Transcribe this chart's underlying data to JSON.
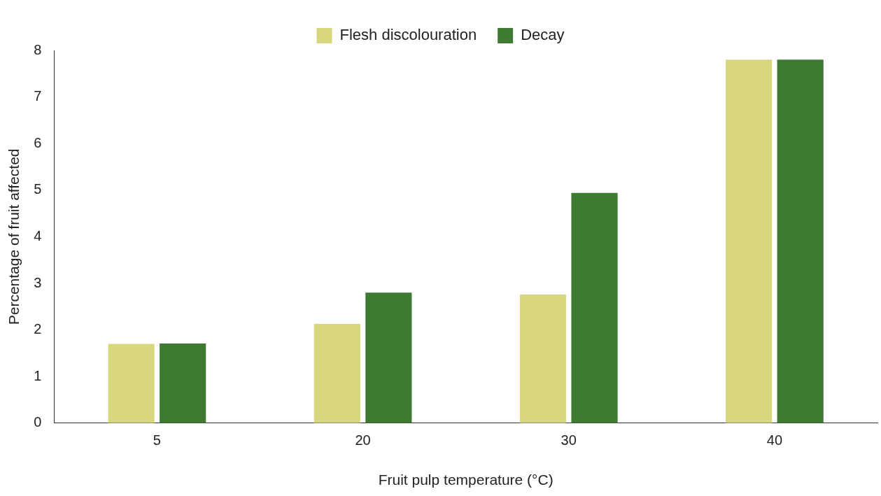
{
  "chart_data": {
    "type": "bar",
    "xlabel": "Fruit pulp temperature (°C)",
    "ylabel": "Percentage of fruit affected",
    "categories": [
      "5",
      "20",
      "30",
      "40"
    ],
    "series": [
      {
        "name": "Flesh discolouration",
        "color": "#d8d780",
        "values": [
          1.7,
          2.13,
          2.76,
          7.8
        ]
      },
      {
        "name": "Decay",
        "color": "#3f7a33",
        "values": [
          1.71,
          2.8,
          4.94,
          7.8
        ]
      }
    ],
    "ylim": [
      0,
      8
    ],
    "yticks": [
      0,
      1,
      2,
      3,
      4,
      5,
      6,
      7,
      8
    ],
    "grid": false,
    "legend": "top"
  }
}
